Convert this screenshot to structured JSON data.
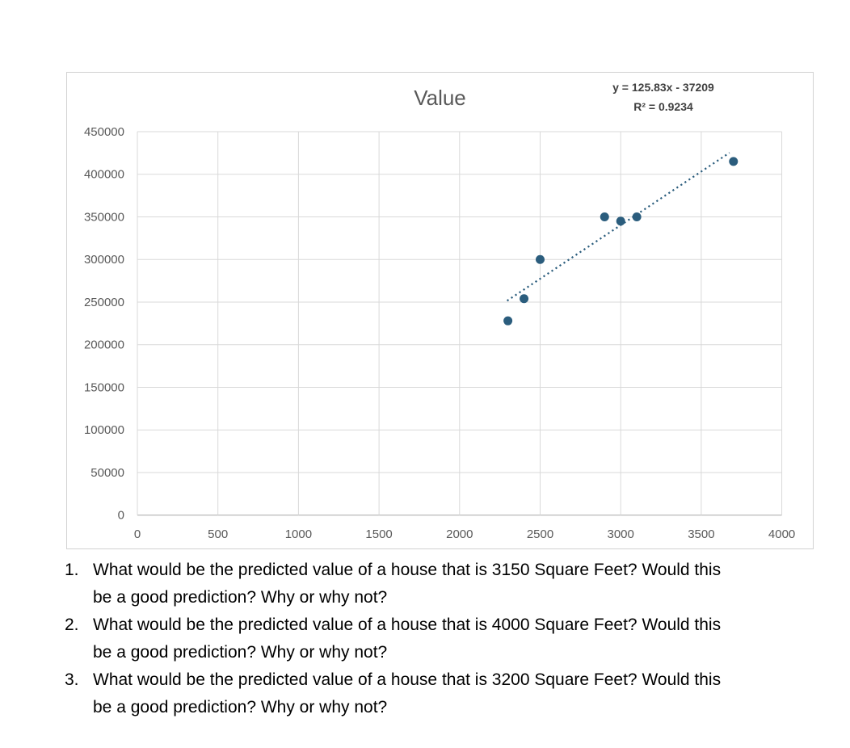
{
  "chart_data": {
    "type": "scatter",
    "title": "Value",
    "xlabel": "",
    "ylabel": "",
    "xlim": [
      0,
      4000
    ],
    "ylim": [
      0,
      450000
    ],
    "x_ticks": [
      0,
      500,
      1000,
      1500,
      2000,
      2500,
      3000,
      3500,
      4000
    ],
    "y_ticks": [
      0,
      50000,
      100000,
      150000,
      200000,
      250000,
      300000,
      350000,
      400000,
      450000
    ],
    "grid": true,
    "legend": "none",
    "point_color": "#2B5D7D",
    "gridline_color": "#D9D9D9",
    "axis_line_color": "#BFBFBF",
    "tick_label_color": "#595959",
    "title_color": "#595959",
    "points": [
      {
        "x": 2300,
        "y": 228000
      },
      {
        "x": 2400,
        "y": 254000
      },
      {
        "x": 2500,
        "y": 300000
      },
      {
        "x": 2900,
        "y": 350000
      },
      {
        "x": 3000,
        "y": 345000
      },
      {
        "x": 3100,
        "y": 350000
      },
      {
        "x": 3700,
        "y": 415000
      }
    ],
    "trendline": {
      "equation_label": "y = 125.83x - 37209",
      "r_squared_label": "R² = 0.9234",
      "slope": 125.83,
      "intercept": -37209,
      "x_start": 2295,
      "x_end": 3675,
      "style": "dotted"
    }
  },
  "questions": [
    {
      "number": "1.",
      "text": "What would be the predicted value of a house that is 3150 Square Feet? Would this\nbe a good prediction? Why or why not?"
    },
    {
      "number": "2.",
      "text": "What would be the predicted value of a house that is 4000 Square Feet? Would this\nbe a good prediction? Why or why not?"
    },
    {
      "number": "3.",
      "text": "What would be the predicted value of a house that is 3200 Square Feet? Would this\nbe a good prediction? Why or why not?"
    }
  ]
}
